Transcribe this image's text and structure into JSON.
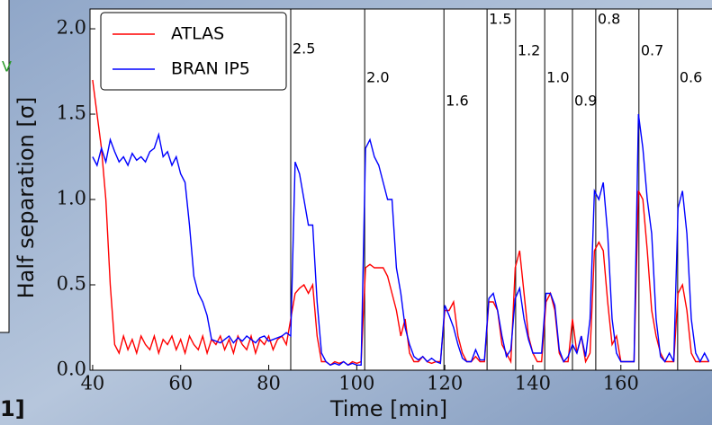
{
  "fragments": [
    "V",
    "1]"
  ],
  "chart_data": {
    "type": "line",
    "xlabel": "Time [min]",
    "ylabel": "Half separation [σ]",
    "xlim": [
      39.4,
      180.7
    ],
    "ylim": [
      0,
      2.116
    ],
    "xticks": [
      40,
      60,
      80,
      100,
      120,
      140,
      160
    ],
    "yticks": [
      {
        "value": 0,
        "label": "0.0"
      },
      0.5,
      {
        "value": 1,
        "label": "1.0"
      },
      1.5,
      {
        "value": 2,
        "label": "2.0"
      }
    ],
    "legend": "upper left",
    "annotations": [
      {
        "x": 85.0,
        "label": "2.5"
      },
      {
        "x": 101.8,
        "label": "2.0"
      },
      {
        "x": 119.8,
        "label": "1.6"
      },
      {
        "x": 129.6,
        "label": "1.5"
      },
      {
        "x": 136.1,
        "label": "1.2"
      },
      {
        "x": 142.7,
        "label": "1.0"
      },
      {
        "x": 149.0,
        "label": "0.9"
      },
      {
        "x": 154.3,
        "label": "0.8"
      },
      {
        "x": 164.1,
        "label": "0.7"
      },
      {
        "x": 172.9,
        "label": "0.6"
      }
    ],
    "x": [
      40,
      41,
      42,
      43,
      44,
      45,
      46,
      47,
      48,
      49,
      50,
      51,
      52,
      53,
      54,
      55,
      56,
      57,
      58,
      59,
      60,
      61,
      62,
      63,
      64,
      65,
      66,
      67,
      68,
      69,
      70,
      71,
      72,
      73,
      74,
      75,
      76,
      77,
      78,
      79,
      80,
      81,
      82,
      83,
      84,
      85,
      86,
      87,
      88,
      89,
      90,
      91,
      92,
      93,
      94,
      95,
      96,
      97,
      98,
      99,
      100,
      101,
      102,
      103,
      104,
      105,
      106,
      107,
      108,
      109,
      110,
      111,
      112,
      113,
      114,
      115,
      116,
      117,
      118,
      119,
      120,
      121,
      122,
      123,
      124,
      125,
      126,
      127,
      128,
      129,
      130,
      131,
      132,
      133,
      134,
      135,
      136,
      137,
      138,
      139,
      140,
      141,
      142,
      143,
      144,
      145,
      146,
      147,
      148,
      149,
      150,
      151,
      152,
      153,
      154,
      155,
      156,
      157,
      158,
      159,
      160,
      161,
      162,
      163,
      164,
      165,
      166,
      167,
      168,
      169,
      170,
      171,
      172,
      173,
      174,
      175,
      176,
      177,
      178,
      179,
      180
    ],
    "series": [
      {
        "name": "ATLAS",
        "color": "#ff0000",
        "values": [
          1.7,
          1.5,
          1.3,
          1.0,
          0.5,
          0.15,
          0.1,
          0.2,
          0.12,
          0.18,
          0.1,
          0.2,
          0.15,
          0.12,
          0.2,
          0.1,
          0.18,
          0.15,
          0.2,
          0.12,
          0.18,
          0.1,
          0.2,
          0.15,
          0.12,
          0.2,
          0.1,
          0.18,
          0.15,
          0.2,
          0.12,
          0.18,
          0.1,
          0.2,
          0.15,
          0.12,
          0.2,
          0.1,
          0.18,
          0.15,
          0.2,
          0.12,
          0.18,
          0.2,
          0.15,
          0.3,
          0.45,
          0.48,
          0.5,
          0.45,
          0.5,
          0.2,
          0.05,
          0.05,
          0.03,
          0.05,
          0.04,
          0.05,
          0.03,
          0.05,
          0.04,
          0.05,
          0.6,
          0.62,
          0.6,
          0.6,
          0.6,
          0.55,
          0.45,
          0.35,
          0.2,
          0.3,
          0.1,
          0.05,
          0.05,
          0.08,
          0.05,
          0.04,
          0.05,
          0.05,
          0.35,
          0.35,
          0.4,
          0.2,
          0.1,
          0.05,
          0.05,
          0.08,
          0.05,
          0.05,
          0.4,
          0.4,
          0.35,
          0.15,
          0.1,
          0.05,
          0.6,
          0.7,
          0.45,
          0.2,
          0.1,
          0.05,
          0.05,
          0.4,
          0.45,
          0.35,
          0.1,
          0.05,
          0.05,
          0.3,
          0.1,
          0.2,
          0.05,
          0.1,
          0.7,
          0.75,
          0.7,
          0.4,
          0.15,
          0.2,
          0.05,
          0.05,
          0.05,
          0.05,
          1.05,
          1.0,
          0.7,
          0.35,
          0.2,
          0.1,
          0.05,
          0.05,
          0.05,
          0.45,
          0.5,
          0.35,
          0.1,
          0.05,
          0.05,
          0.05,
          0.05
        ]
      },
      {
        "name": "BRAN IP5",
        "color": "#0000ff",
        "values": [
          1.25,
          1.2,
          1.3,
          1.22,
          1.35,
          1.28,
          1.22,
          1.25,
          1.2,
          1.27,
          1.23,
          1.25,
          1.22,
          1.28,
          1.3,
          1.38,
          1.25,
          1.28,
          1.2,
          1.25,
          1.15,
          1.1,
          0.85,
          0.55,
          0.45,
          0.4,
          0.32,
          0.18,
          0.17,
          0.16,
          0.18,
          0.2,
          0.16,
          0.19,
          0.17,
          0.2,
          0.18,
          0.16,
          0.19,
          0.2,
          0.17,
          0.18,
          0.19,
          0.2,
          0.22,
          0.2,
          1.22,
          1.15,
          1.0,
          0.85,
          0.85,
          0.4,
          0.1,
          0.05,
          0.03,
          0.04,
          0.03,
          0.05,
          0.03,
          0.04,
          0.03,
          0.03,
          1.3,
          1.35,
          1.25,
          1.2,
          1.1,
          1.0,
          1.0,
          0.6,
          0.45,
          0.25,
          0.15,
          0.08,
          0.06,
          0.08,
          0.05,
          0.07,
          0.05,
          0.04,
          0.38,
          0.32,
          0.25,
          0.15,
          0.07,
          0.05,
          0.05,
          0.12,
          0.06,
          0.06,
          0.42,
          0.45,
          0.35,
          0.2,
          0.08,
          0.12,
          0.42,
          0.48,
          0.3,
          0.18,
          0.1,
          0.1,
          0.1,
          0.45,
          0.45,
          0.38,
          0.12,
          0.05,
          0.08,
          0.15,
          0.1,
          0.2,
          0.08,
          0.3,
          1.05,
          1.0,
          1.1,
          0.8,
          0.3,
          0.1,
          0.05,
          0.05,
          0.05,
          0.05,
          1.5,
          1.3,
          1.0,
          0.8,
          0.3,
          0.08,
          0.05,
          0.1,
          0.05,
          0.95,
          1.05,
          0.8,
          0.3,
          0.1,
          0.05,
          0.1,
          0.05
        ]
      }
    ]
  }
}
